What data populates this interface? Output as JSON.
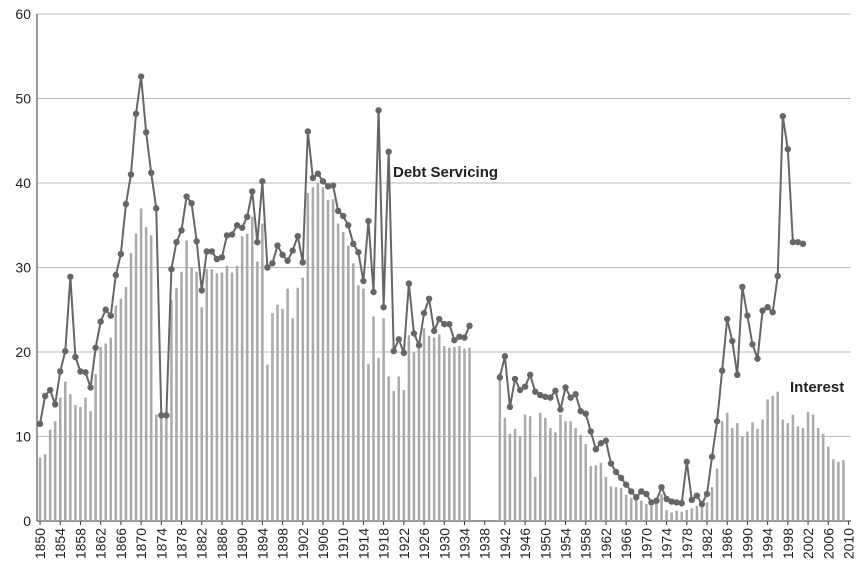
{
  "chart_data": {
    "type": "bar-line",
    "x": [
      1850,
      1851,
      1852,
      1853,
      1854,
      1855,
      1856,
      1857,
      1858,
      1859,
      1860,
      1861,
      1862,
      1863,
      1864,
      1865,
      1866,
      1867,
      1868,
      1869,
      1870,
      1871,
      1872,
      1873,
      1874,
      1875,
      1876,
      1877,
      1878,
      1879,
      1880,
      1881,
      1882,
      1883,
      1884,
      1885,
      1886,
      1887,
      1888,
      1889,
      1890,
      1891,
      1892,
      1893,
      1894,
      1895,
      1896,
      1897,
      1898,
      1899,
      1900,
      1901,
      1902,
      1903,
      1904,
      1905,
      1906,
      1907,
      1908,
      1909,
      1910,
      1911,
      1912,
      1913,
      1914,
      1915,
      1916,
      1917,
      1918,
      1919,
      1920,
      1921,
      1922,
      1923,
      1924,
      1925,
      1926,
      1927,
      1928,
      1929,
      1930,
      1931,
      1932,
      1933,
      1934,
      1935,
      1936,
      1937,
      1938,
      1939,
      1940,
      1941,
      1942,
      1943,
      1944,
      1945,
      1946,
      1947,
      1948,
      1949,
      1950,
      1951,
      1952,
      1953,
      1954,
      1955,
      1956,
      1957,
      1958,
      1959,
      1960,
      1961,
      1962,
      1963,
      1964,
      1965,
      1966,
      1967,
      1968,
      1969,
      1970,
      1971,
      1972,
      1973,
      1974,
      1975,
      1976,
      1977,
      1978,
      1979,
      1980,
      1981,
      1982,
      1983,
      1984,
      1985,
      1986,
      1987,
      1988,
      1989,
      1990,
      1991,
      1992,
      1993,
      1994,
      1995,
      1996,
      1997,
      1998,
      1999,
      2000,
      2001,
      2002,
      2003,
      2004,
      2005,
      2006,
      2007,
      2008,
      2009,
      2010
    ],
    "series": [
      {
        "name": "Interest",
        "kind": "bar",
        "color": "#aaaaaa",
        "values": [
          7.5,
          7.9,
          10.8,
          11.8,
          14.6,
          16.5,
          15.0,
          13.7,
          13.5,
          14.6,
          13.0,
          17.4,
          20.6,
          21.0,
          21.7,
          25.5,
          26.3,
          27.7,
          31.7,
          34.0,
          37.0,
          34.8,
          33.8,
          12.6,
          12.3,
          12.4,
          26.2,
          27.6,
          29.5,
          33.2,
          30.0,
          29.5,
          25.3,
          29.8,
          29.8,
          29.3,
          29.4,
          30.2,
          29.4,
          30.2,
          33.7,
          34.0,
          36.0,
          30.7,
          35.2,
          18.5,
          24.6,
          25.6,
          25.1,
          27.5,
          24.0,
          27.6,
          28.8,
          38.8,
          39.5,
          40.0,
          39.5,
          38.0,
          38.1,
          35.2,
          34.2,
          32.6,
          30.5,
          27.9,
          27.5,
          18.6,
          24.2,
          19.3,
          24.0,
          17.1,
          15.4,
          17.1,
          15.5,
          22.0,
          20.0,
          21.0,
          22.8,
          21.9,
          21.7,
          22.1,
          20.7,
          20.5,
          20.6,
          20.7,
          20.4,
          20.5,
          null,
          null,
          null,
          null,
          null,
          17.5,
          12.2,
          10.3,
          10.9,
          10.0,
          12.6,
          12.4,
          5.2,
          12.8,
          12.2,
          11.0,
          10.5,
          12.6,
          11.8,
          11.8,
          11.0,
          10.2,
          9.1,
          6.5,
          6.6,
          6.9,
          5.2,
          4.1,
          4.0,
          3.9,
          3.1,
          2.7,
          2.9,
          2.4,
          2.0,
          1.8,
          2.5,
          3.2,
          1.3,
          1.0,
          1.2,
          1.1,
          1.3,
          1.5,
          1.8,
          1.8,
          2.2,
          4.0,
          6.2,
          11.8,
          12.8,
          11.0,
          11.6,
          10.0,
          10.6,
          11.7,
          10.9,
          12.0,
          14.4,
          14.8,
          15.3,
          12.0,
          11.6,
          12.6,
          11.2,
          11.0,
          12.9,
          12.6,
          11.0,
          10.3,
          8.8,
          7.3,
          7.0,
          7.2,
          null
        ]
      },
      {
        "name": "Debt Servicing",
        "kind": "line",
        "color": "#666666",
        "values": [
          11.5,
          14.8,
          15.5,
          13.8,
          17.7,
          20.1,
          28.9,
          19.4,
          17.7,
          17.6,
          15.8,
          20.5,
          23.6,
          25.0,
          24.3,
          29.1,
          31.6,
          37.5,
          41.0,
          48.2,
          52.6,
          46.0,
          41.2,
          37.0,
          12.5,
          12.5,
          29.8,
          33.0,
          34.4,
          38.4,
          37.6,
          33.1,
          27.3,
          31.9,
          31.9,
          31.0,
          31.2,
          33.8,
          33.9,
          35.0,
          34.7,
          36.0,
          39.0,
          33.0,
          40.2,
          30.0,
          30.5,
          32.6,
          31.5,
          30.8,
          32.0,
          33.7,
          30.6,
          46.1,
          40.6,
          41.1,
          40.2,
          39.6,
          39.7,
          36.7,
          36.1,
          35.0,
          32.8,
          31.8,
          28.4,
          35.5,
          27.1,
          48.6,
          25.3,
          43.7,
          20.1,
          21.5,
          19.9,
          28.1,
          22.2,
          20.8,
          24.6,
          26.3,
          22.5,
          23.9,
          23.3,
          23.3,
          21.4,
          21.8,
          21.7,
          23.1,
          null,
          null,
          null,
          null,
          null,
          17.0,
          19.5,
          13.5,
          16.8,
          15.5,
          15.9,
          17.3,
          15.3,
          14.9,
          14.7,
          14.6,
          15.4,
          13.2,
          15.8,
          14.6,
          15.0,
          13.0,
          12.7,
          10.6,
          8.5,
          9.2,
          9.5,
          6.8,
          5.8,
          5.1,
          4.3,
          3.5,
          2.8,
          3.5,
          3.2,
          2.2,
          2.4,
          4.0,
          2.6,
          2.3,
          2.2,
          2.1,
          7.0,
          2.5,
          3.0,
          2.0,
          3.2,
          7.6,
          11.8,
          17.8,
          23.9,
          21.3,
          17.3,
          27.7,
          24.3,
          20.9,
          19.2,
          24.9,
          25.3,
          24.7,
          29.0,
          47.9,
          44.0,
          33.0,
          33.0,
          32.8,
          null,
          null,
          null,
          null,
          null,
          null,
          null,
          null,
          null
        ]
      }
    ],
    "xlim": [
      1849.4,
      2010.5
    ],
    "xticks": [
      1850,
      1854,
      1858,
      1862,
      1866,
      1870,
      1874,
      1878,
      1882,
      1886,
      1890,
      1894,
      1898,
      1902,
      1906,
      1910,
      1914,
      1918,
      1922,
      1926,
      1930,
      1934,
      1938,
      1942,
      1946,
      1950,
      1954,
      1958,
      1962,
      1966,
      1970,
      1974,
      1978,
      1982,
      1986,
      1990,
      1994,
      1998,
      2002,
      2006,
      2010
    ],
    "ylim": [
      0,
      60
    ],
    "yticks": [
      0,
      10,
      20,
      30,
      40,
      50,
      60
    ],
    "grid": true
  }
}
